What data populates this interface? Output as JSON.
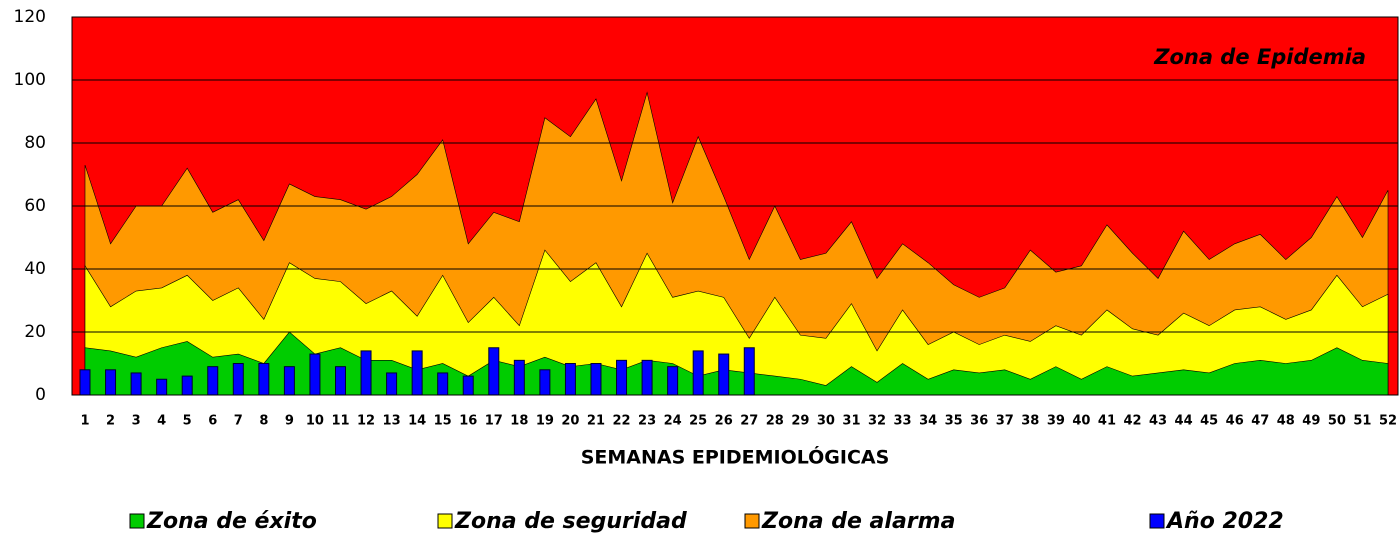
{
  "chart_data": {
    "type": "area",
    "annotation": "Zona de Epidemia",
    "x_label": "SEMANAS EPIDEMIOLÓGICAS",
    "plot_background": "#ff0000",
    "categories": [
      "1",
      "2",
      "3",
      "4",
      "5",
      "6",
      "7",
      "8",
      "9",
      "10",
      "11",
      "12",
      "13",
      "14",
      "15",
      "16",
      "17",
      "18",
      "19",
      "20",
      "21",
      "22",
      "23",
      "24",
      "25",
      "26",
      "27",
      "28",
      "29",
      "30",
      "31",
      "32",
      "33",
      "34",
      "35",
      "36",
      "37",
      "38",
      "39",
      "40",
      "41",
      "42",
      "43",
      "44",
      "45",
      "46",
      "47",
      "48",
      "49",
      "50",
      "51",
      "52"
    ],
    "ylim": [
      0,
      120
    ],
    "yticks": [
      0,
      20,
      40,
      60,
      80,
      100,
      120
    ],
    "grid": true,
    "series": [
      {
        "name": "Zona de éxito",
        "type": "area",
        "color": "#00cc00",
        "values": [
          15,
          14,
          12,
          15,
          17,
          12,
          13,
          10,
          20,
          13,
          15,
          11,
          11,
          8,
          10,
          6,
          11,
          9,
          12,
          9,
          10,
          8,
          11,
          10,
          6,
          8,
          7,
          6,
          5,
          3,
          9,
          4,
          10,
          5,
          8,
          7,
          8,
          5,
          9,
          5,
          9,
          6,
          7,
          8,
          7,
          10,
          11,
          10,
          11,
          15,
          11,
          10
        ]
      },
      {
        "name": "Zona de seguridad",
        "type": "area",
        "color": "#ffff00",
        "values": [
          41,
          28,
          33,
          34,
          38,
          30,
          34,
          24,
          42,
          37,
          36,
          29,
          33,
          25,
          38,
          23,
          31,
          22,
          46,
          36,
          42,
          28,
          45,
          31,
          33,
          31,
          18,
          31,
          19,
          18,
          29,
          14,
          27,
          16,
          20,
          16,
          19,
          17,
          22,
          19,
          27,
          21,
          19,
          26,
          22,
          27,
          28,
          24,
          27,
          38,
          28,
          32
        ]
      },
      {
        "name": "Zona de alarma",
        "type": "area",
        "color": "#ff9900",
        "values": [
          73,
          48,
          60,
          60,
          72,
          58,
          62,
          49,
          67,
          63,
          62,
          59,
          63,
          70,
          81,
          48,
          58,
          55,
          88,
          82,
          94,
          68,
          96,
          61,
          82,
          63,
          43,
          60,
          43,
          45,
          55,
          37,
          48,
          42,
          35,
          31,
          34,
          46,
          39,
          41,
          54,
          45,
          37,
          52,
          43,
          48,
          51,
          43,
          50,
          63,
          50,
          65
        ]
      },
      {
        "name": "Año 2022",
        "type": "bar",
        "color": "#0000ff",
        "values": [
          8,
          8,
          7,
          5,
          6,
          9,
          10,
          10,
          9,
          13,
          9,
          14,
          7,
          14,
          7,
          6,
          15,
          11,
          8,
          10,
          10,
          11,
          11,
          9,
          14,
          13,
          15,
          null,
          null,
          null,
          null,
          null,
          null,
          null,
          null,
          null,
          null,
          null,
          null,
          null,
          null,
          null,
          null,
          null,
          null,
          null,
          null,
          null,
          null,
          null,
          null,
          null
        ]
      }
    ]
  }
}
